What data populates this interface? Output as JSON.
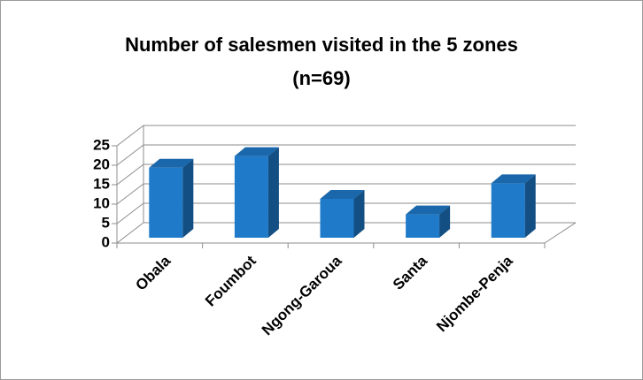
{
  "chart_data": {
    "type": "bar3d",
    "title": "Number of salesmen visited in the 5 zones",
    "subtitle": "(n=69)",
    "categories": [
      "Obala",
      "Foumbot",
      "Ngong-Garoua",
      "Santa",
      "Njombe-Penja"
    ],
    "values": [
      18,
      21,
      10,
      6,
      14
    ],
    "color": "#1f7ac9",
    "ylim": [
      0,
      25
    ],
    "yticks": [
      0,
      5,
      10,
      15,
      20,
      25
    ],
    "grid": true
  }
}
